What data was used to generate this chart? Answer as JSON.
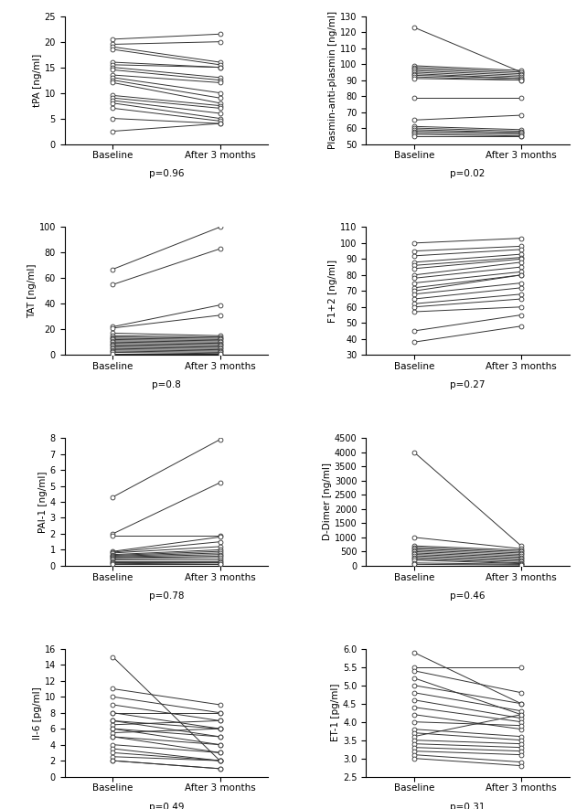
{
  "panels": [
    {
      "ylabel": "tPA [ng/ml]",
      "ylim": [
        0,
        25
      ],
      "yticks": [
        0,
        5,
        10,
        15,
        20,
        25
      ],
      "pvalue": "p=0.96",
      "baseline": [
        20.5,
        19.5,
        19.0,
        18.5,
        16.0,
        15.5,
        15.0,
        14.5,
        13.5,
        13.0,
        12.5,
        12.0,
        9.5,
        9.0,
        8.5,
        8.0,
        7.0,
        5.0,
        2.5
      ],
      "after": [
        21.5,
        20.0,
        16.0,
        15.5,
        15.0,
        15.0,
        13.0,
        12.5,
        12.0,
        10.0,
        9.0,
        8.0,
        7.5,
        7.0,
        6.0,
        5.0,
        4.5,
        4.0,
        4.0
      ]
    },
    {
      "ylabel": "Plasmin-anti-plasmin [ng/ml]",
      "ylim": [
        50,
        130
      ],
      "yticks": [
        50,
        60,
        70,
        80,
        90,
        100,
        110,
        120,
        130
      ],
      "pvalue": "p=0.02",
      "baseline": [
        123,
        99,
        98,
        97,
        96,
        95,
        94,
        93,
        92,
        91,
        79,
        65,
        61,
        60,
        59,
        58,
        57,
        56,
        55
      ],
      "after": [
        95,
        96,
        95,
        94,
        93,
        92,
        91,
        91,
        90,
        90,
        79,
        68,
        59,
        58,
        57,
        57,
        56,
        55,
        55
      ]
    },
    {
      "ylabel": "TAT [ng/ml]",
      "ylim": [
        0,
        100
      ],
      "yticks": [
        0,
        20,
        40,
        60,
        80,
        100
      ],
      "pvalue": "p=0.8",
      "baseline": [
        67,
        55,
        22,
        21,
        17,
        15,
        14,
        13,
        12,
        11,
        10,
        9,
        8,
        7,
        6,
        5,
        4,
        3,
        2,
        1
      ],
      "after": [
        100,
        83,
        39,
        31,
        15,
        14,
        13,
        12,
        11,
        10,
        9,
        8,
        7,
        6,
        5,
        4,
        3,
        2,
        1,
        1
      ]
    },
    {
      "ylabel": "F1+2 [ng/ml]",
      "ylim": [
        30,
        110
      ],
      "yticks": [
        30,
        40,
        50,
        60,
        70,
        80,
        90,
        100,
        110
      ],
      "pvalue": "p=0.27",
      "baseline": [
        100,
        95,
        92,
        88,
        86,
        84,
        80,
        78,
        75,
        72,
        70,
        68,
        65,
        62,
        60,
        57,
        45,
        38
      ],
      "after": [
        103,
        98,
        96,
        93,
        91,
        90,
        88,
        85,
        82,
        80,
        80,
        75,
        72,
        68,
        65,
        60,
        55,
        48
      ]
    },
    {
      "ylabel": "PAI-1 [ng/ml]",
      "ylim": [
        0,
        8
      ],
      "yticks": [
        0,
        1,
        2,
        3,
        4,
        5,
        6,
        7,
        8
      ],
      "pvalue": "p=0.78",
      "baseline": [
        4.3,
        2.0,
        1.9,
        0.9,
        0.85,
        0.8,
        0.7,
        0.65,
        0.6,
        0.55,
        0.5,
        0.45,
        0.4,
        0.3,
        0.2,
        0.15,
        0.1
      ],
      "after": [
        7.9,
        5.2,
        1.9,
        1.8,
        1.5,
        1.2,
        1.0,
        0.9,
        0.8,
        0.7,
        0.6,
        0.5,
        0.4,
        0.3,
        0.2,
        0.1,
        0.1
      ]
    },
    {
      "ylabel": "D-Dimer [ng/ml]",
      "ylim": [
        0,
        4500
      ],
      "yticks": [
        0,
        500,
        1000,
        1500,
        2000,
        2500,
        3000,
        3500,
        4000,
        4500
      ],
      "pvalue": "p=0.46",
      "baseline": [
        4000,
        1000,
        700,
        650,
        600,
        550,
        500,
        450,
        400,
        350,
        300,
        250,
        200,
        100,
        50
      ],
      "after": [
        700,
        600,
        550,
        500,
        450,
        400,
        350,
        300,
        250,
        200,
        150,
        100,
        75,
        50,
        25
      ]
    },
    {
      "ylabel": "Il-6 [pg/ml]",
      "ylim": [
        0,
        16
      ],
      "yticks": [
        0,
        2,
        4,
        6,
        8,
        10,
        12,
        14,
        16
      ],
      "pvalue": "p=0.49",
      "baseline": [
        15,
        11,
        10,
        9,
        8,
        8,
        7,
        7,
        6.5,
        6,
        6,
        5.5,
        5,
        5,
        4,
        3.5,
        3,
        2.5,
        2,
        2
      ],
      "after": [
        2,
        9,
        8,
        7,
        8,
        6,
        6,
        5,
        7,
        5,
        4,
        6,
        4,
        3,
        3,
        2,
        2,
        2,
        1,
        1
      ]
    },
    {
      "ylabel": "ET-1 [pg/ml]",
      "ylim": [
        2.5,
        6.0
      ],
      "yticks": [
        2.5,
        3.0,
        3.5,
        4.0,
        4.5,
        5.0,
        5.5,
        6.0
      ],
      "pvalue": "p=0.31",
      "baseline": [
        5.9,
        5.5,
        5.4,
        5.2,
        5.0,
        4.8,
        4.6,
        4.4,
        4.2,
        4.0,
        3.8,
        3.7,
        3.6,
        3.5,
        3.4,
        3.3,
        3.2,
        3.1,
        3.0
      ],
      "after": [
        4.5,
        5.5,
        4.8,
        4.2,
        4.5,
        4.3,
        4.1,
        4.0,
        3.8,
        3.9,
        3.6,
        3.5,
        4.2,
        3.4,
        3.3,
        3.2,
        3.1,
        2.9,
        2.8
      ]
    }
  ],
  "xlabel_baseline": "Baseline",
  "xlabel_after": "After 3 months",
  "line_color": "#333333",
  "marker_style": "o",
  "marker_size": 3.5,
  "marker_facecolor": "white",
  "marker_edgecolor": "#333333",
  "line_width": 0.7,
  "background_color": "white",
  "pvalue_fontsize": 7.5,
  "ylabel_fontsize": 7.5,
  "tick_fontsize": 7,
  "xlabel_fontsize": 7.5
}
